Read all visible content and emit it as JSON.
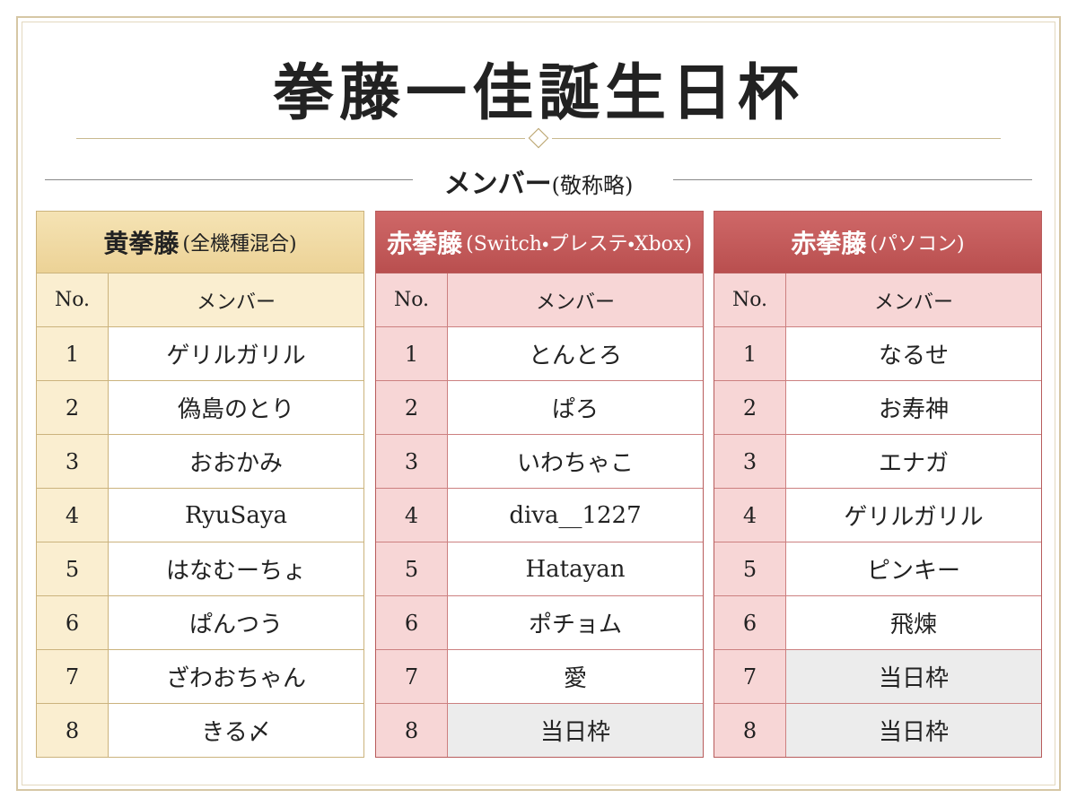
{
  "header": {
    "title": "拳藤一佳誕生日杯",
    "subtitle": "メンバー",
    "subtitle_note": "(敬称略)"
  },
  "tables": [
    {
      "name": "黄拳藤",
      "note": "(全機種混合)",
      "col_no": "No.",
      "col_member": "メンバー",
      "rows": [
        [
          "1",
          "ゲリルガリル"
        ],
        [
          "2",
          "偽島のとり"
        ],
        [
          "3",
          "おおかみ"
        ],
        [
          "4",
          "RyuSaya"
        ],
        [
          "5",
          "はなむーちょ"
        ],
        [
          "6",
          "ぱんつう"
        ],
        [
          "7",
          "ざわおちゃん"
        ],
        [
          "8",
          "きる〆"
        ]
      ]
    },
    {
      "name": "赤拳藤",
      "note": "(Switch・プレステ・Xbox)",
      "col_no": "No.",
      "col_member": "メンバー",
      "rows": [
        [
          "1",
          "とんとろ"
        ],
        [
          "2",
          "ぱろ"
        ],
        [
          "3",
          "いわちゃこ"
        ],
        [
          "4",
          "diva__1227"
        ],
        [
          "5",
          "Hatayan"
        ],
        [
          "6",
          "ポチョム"
        ],
        [
          "7",
          "愛"
        ],
        [
          "8",
          "当日枠"
        ]
      ]
    },
    {
      "name": "赤拳藤",
      "note": "(パソコン)",
      "col_no": "No.",
      "col_member": "メンバー",
      "rows": [
        [
          "1",
          "なるせ"
        ],
        [
          "2",
          "お寿神"
        ],
        [
          "3",
          "エナガ"
        ],
        [
          "4",
          "ゲリルガリル"
        ],
        [
          "5",
          "ピンキー"
        ],
        [
          "6",
          "飛煉"
        ],
        [
          "7",
          "当日枠"
        ],
        [
          "8",
          "当日枠"
        ]
      ]
    }
  ]
}
